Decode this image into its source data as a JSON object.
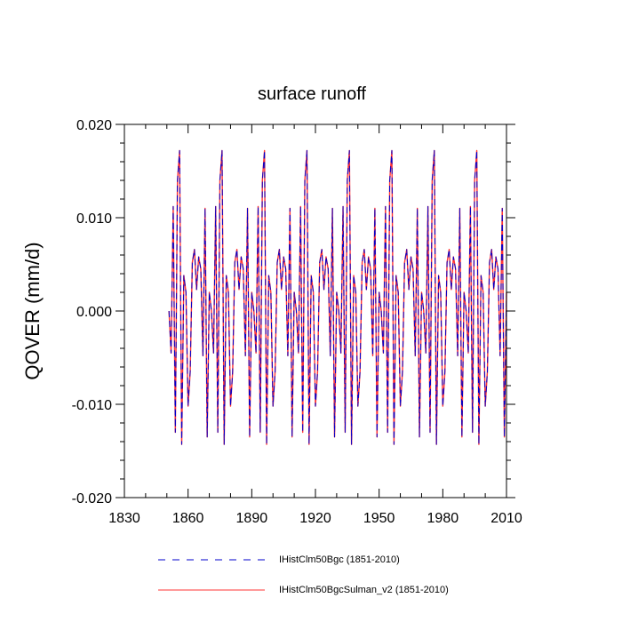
{
  "chart_data": {
    "type": "line",
    "title": "surface runoff",
    "xlabel": "",
    "ylabel": "QOVER  (mm/d)",
    "xlim": [
      1830,
      2010
    ],
    "ylim": [
      -0.02,
      0.02
    ],
    "x_ticks": [
      1830,
      1860,
      1890,
      1920,
      1950,
      1980,
      2010
    ],
    "x_tick_labels": [
      "1830",
      "1860",
      "1890",
      "1920",
      "1950",
      "1980",
      "2010"
    ],
    "y_ticks": [
      -0.02,
      -0.01,
      0.0,
      0.01,
      0.02
    ],
    "y_tick_labels": [
      "-0.020",
      "-0.010",
      "0.000",
      "0.010",
      "0.020"
    ],
    "grid": false,
    "legend_position": "bottom",
    "cycle_years": [
      1851,
      1852,
      1853,
      1854,
      1855,
      1856,
      1857,
      1858,
      1859,
      1860,
      1861,
      1862,
      1863,
      1864,
      1865,
      1866,
      1867,
      1868,
      1869,
      1870
    ],
    "cycle_values": [
      0.0,
      -0.0045,
      0.0112,
      -0.013,
      0.014,
      0.0172,
      -0.0143,
      0.0038,
      0.002,
      -0.0102,
      -0.0065,
      0.0052,
      0.0066,
      0.0023,
      0.0058,
      0.0045,
      -0.0048,
      0.011,
      -0.0135,
      0.002
    ],
    "series": [
      {
        "name": "IHistClm50Bgc (1851-2010)",
        "color": "#0000cc",
        "dash": "dashed",
        "x_start": 1851,
        "x_end": 2010,
        "repeat_period_years": 20
      },
      {
        "name": "IHistClm50BgcSulman_v2 (1851-2010)",
        "color": "#ff3333",
        "dash": "solid",
        "x_start": 1851,
        "x_end": 2010,
        "repeat_period_years": 20
      }
    ]
  }
}
